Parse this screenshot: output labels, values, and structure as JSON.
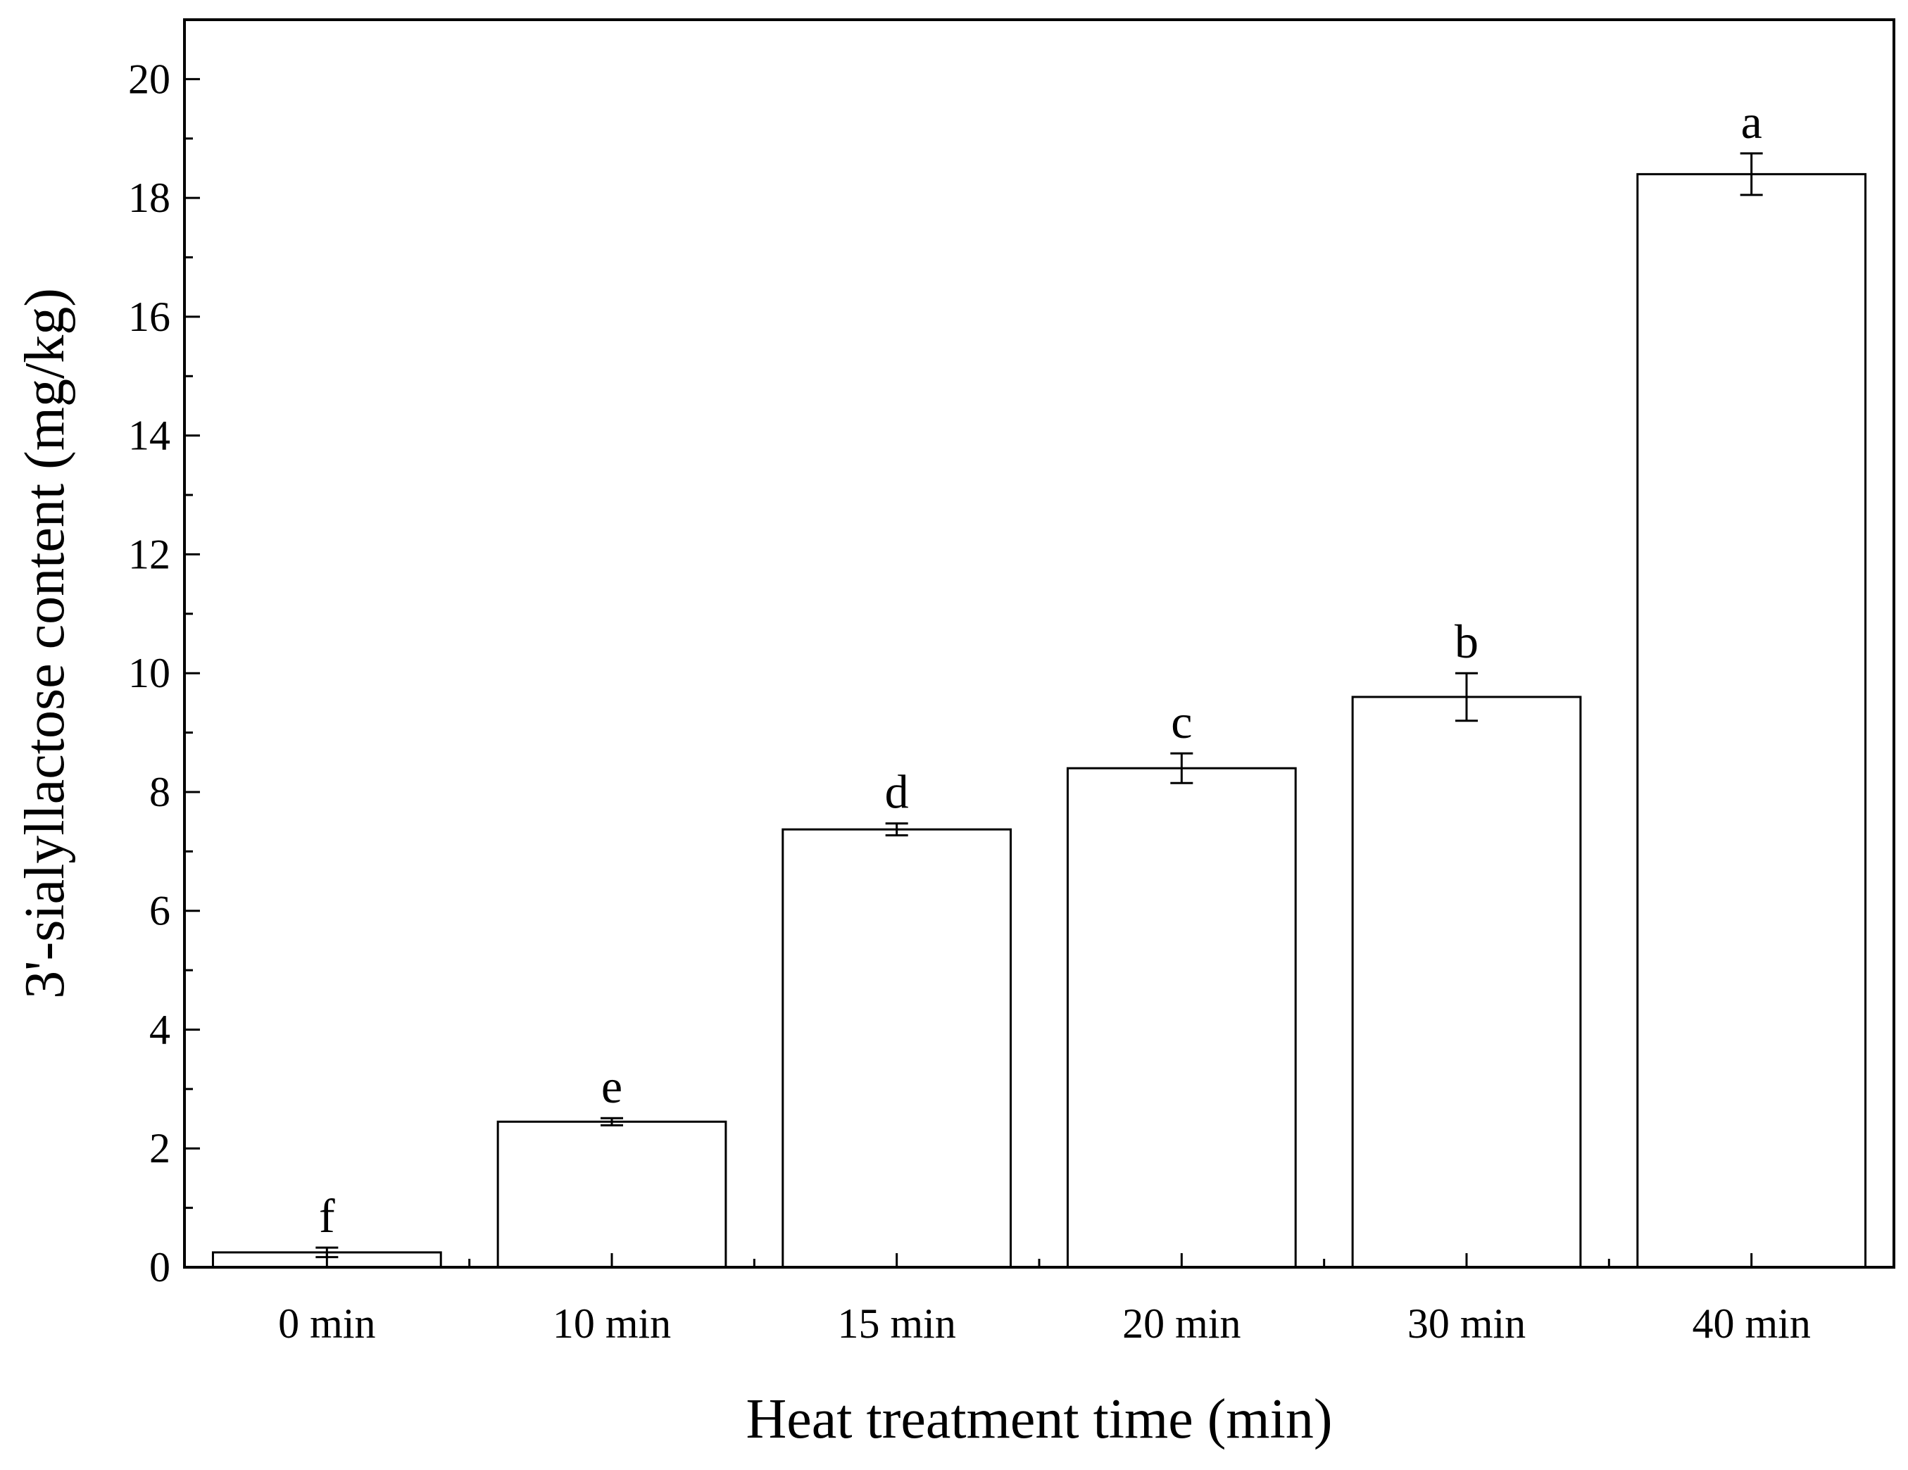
{
  "chart_data": {
    "type": "bar",
    "title": "",
    "xlabel": "Heat treatment time (min)",
    "ylabel": "3'-sialyllactose content (mg/kg)",
    "ylim": [
      0,
      21
    ],
    "yticks": [
      0,
      2,
      4,
      6,
      8,
      10,
      12,
      14,
      16,
      18,
      20
    ],
    "grid": false,
    "legend": "none",
    "categories": [
      "0 min",
      "10 min",
      "15 min",
      "20 min",
      "30 min",
      "40 min"
    ],
    "values": [
      0.25,
      2.45,
      7.37,
      8.4,
      9.6,
      18.4
    ],
    "errors": [
      0.08,
      0.06,
      0.1,
      0.25,
      0.4,
      0.35
    ],
    "significance_letters": [
      "f",
      "e",
      "d",
      "c",
      "b",
      "a"
    ],
    "colors": {
      "bar_fill": "#ffffff",
      "bar_stroke": "#000000",
      "axis": "#000000"
    }
  }
}
